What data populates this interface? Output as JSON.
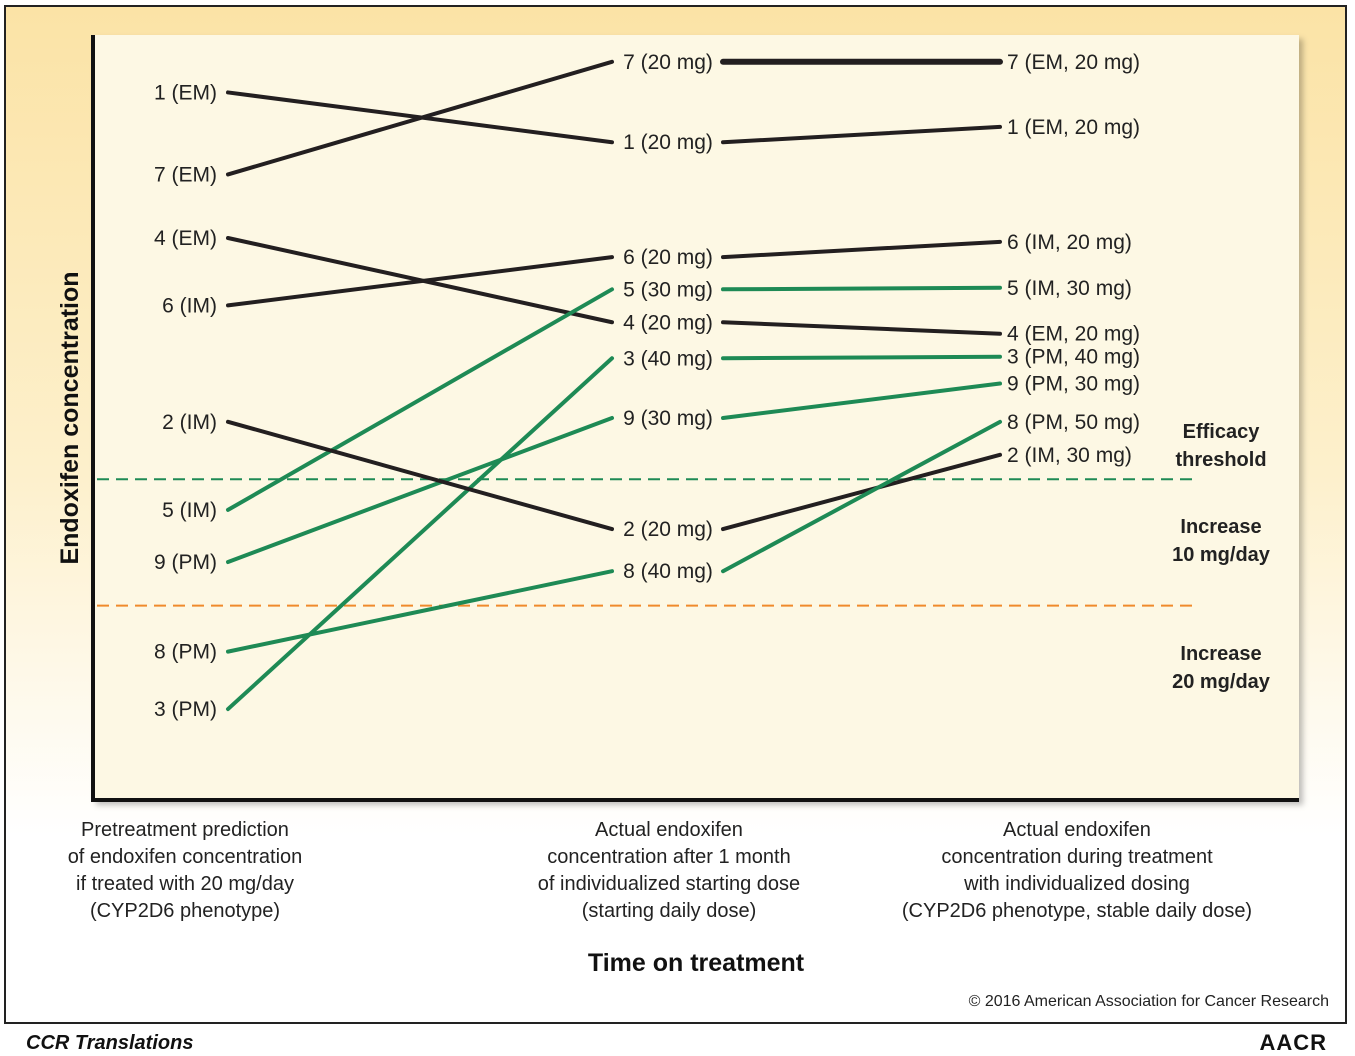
{
  "chart_data": {
    "type": "line",
    "ylabel": "Endoxifen concentration",
    "xlabel": "Time on treatment",
    "stages": [
      [
        "Pretreatment prediction",
        "of endoxifen concentration",
        "if treated with 20 mg/day",
        "(CYP2D6 phenotype)"
      ],
      [
        "Actual endoxifen",
        "concentration after 1 month",
        "of individualized starting dose",
        "(starting daily dose)"
      ],
      [
        "Actual endoxifen",
        "concentration during treatment",
        "with individualized dosing",
        "(CYP2D6 phenotype, stable daily dose)"
      ]
    ],
    "thresholds": [
      {
        "name": "Efficacy threshold",
        "value": 0.42,
        "color": "#1e8a55"
      },
      {
        "name": "Increase 10 mg/day",
        "value": 0.255,
        "color": "#f08a2c"
      }
    ],
    "threshold_notes": [
      [
        "Efficacy",
        "threshold"
      ],
      [
        "Increase",
        "10 mg/day"
      ],
      [
        "Increase",
        "20 mg/day"
      ]
    ],
    "colors": {
      "above": "#231f20",
      "below": "#1e8a55"
    },
    "series": [
      {
        "patient": "1",
        "color": "above",
        "labels": [
          "1 (EM)",
          "1 (20 mg)",
          "1 (EM, 20 mg)"
        ],
        "values": [
          0.925,
          0.86,
          0.88
        ]
      },
      {
        "patient": "7",
        "color": "above",
        "labels": [
          "7 (EM)",
          "7 (20 mg)",
          "7 (EM, 20 mg)"
        ],
        "values": [
          0.818,
          0.965,
          0.965
        ],
        "thick_last": true
      },
      {
        "patient": "4",
        "color": "above",
        "labels": [
          "4 (EM)",
          "4 (20 mg)",
          "4 (EM, 20 mg)"
        ],
        "values": [
          0.735,
          0.625,
          0.61
        ]
      },
      {
        "patient": "6",
        "color": "above",
        "labels": [
          "6 (IM)",
          "6 (20 mg)",
          "6 (IM, 20 mg)"
        ],
        "values": [
          0.647,
          0.71,
          0.73
        ]
      },
      {
        "patient": "5",
        "color": "below",
        "labels": [
          "5 (IM)",
          "5 (30 mg)",
          "5 (IM, 30 mg)"
        ],
        "values": [
          0.38,
          0.668,
          0.67
        ]
      },
      {
        "patient": "3",
        "color": "below",
        "labels": [
          "3 (PM)",
          "3 (40 mg)",
          "3 (PM, 40 mg)"
        ],
        "values": [
          0.12,
          0.578,
          0.58
        ]
      },
      {
        "patient": "9",
        "color": "below",
        "labels": [
          "9 (PM)",
          "9 (30 mg)",
          "9 (PM, 30 mg)"
        ],
        "values": [
          0.312,
          0.5,
          0.545
        ]
      },
      {
        "patient": "2",
        "color": "above",
        "labels": [
          "2 (IM)",
          "2 (20 mg)",
          "2 (IM, 30 mg)"
        ],
        "values": [
          0.495,
          0.355,
          0.452
        ]
      },
      {
        "patient": "8",
        "color": "below",
        "labels": [
          "8 (PM)",
          "8 (40 mg)",
          "8 (PM, 50 mg)"
        ],
        "values": [
          0.195,
          0.3,
          0.495
        ]
      }
    ]
  },
  "copyright": "© 2016 American Association for Cancer Research",
  "footer": {
    "left": "CCR Translations",
    "right": "AACR"
  }
}
